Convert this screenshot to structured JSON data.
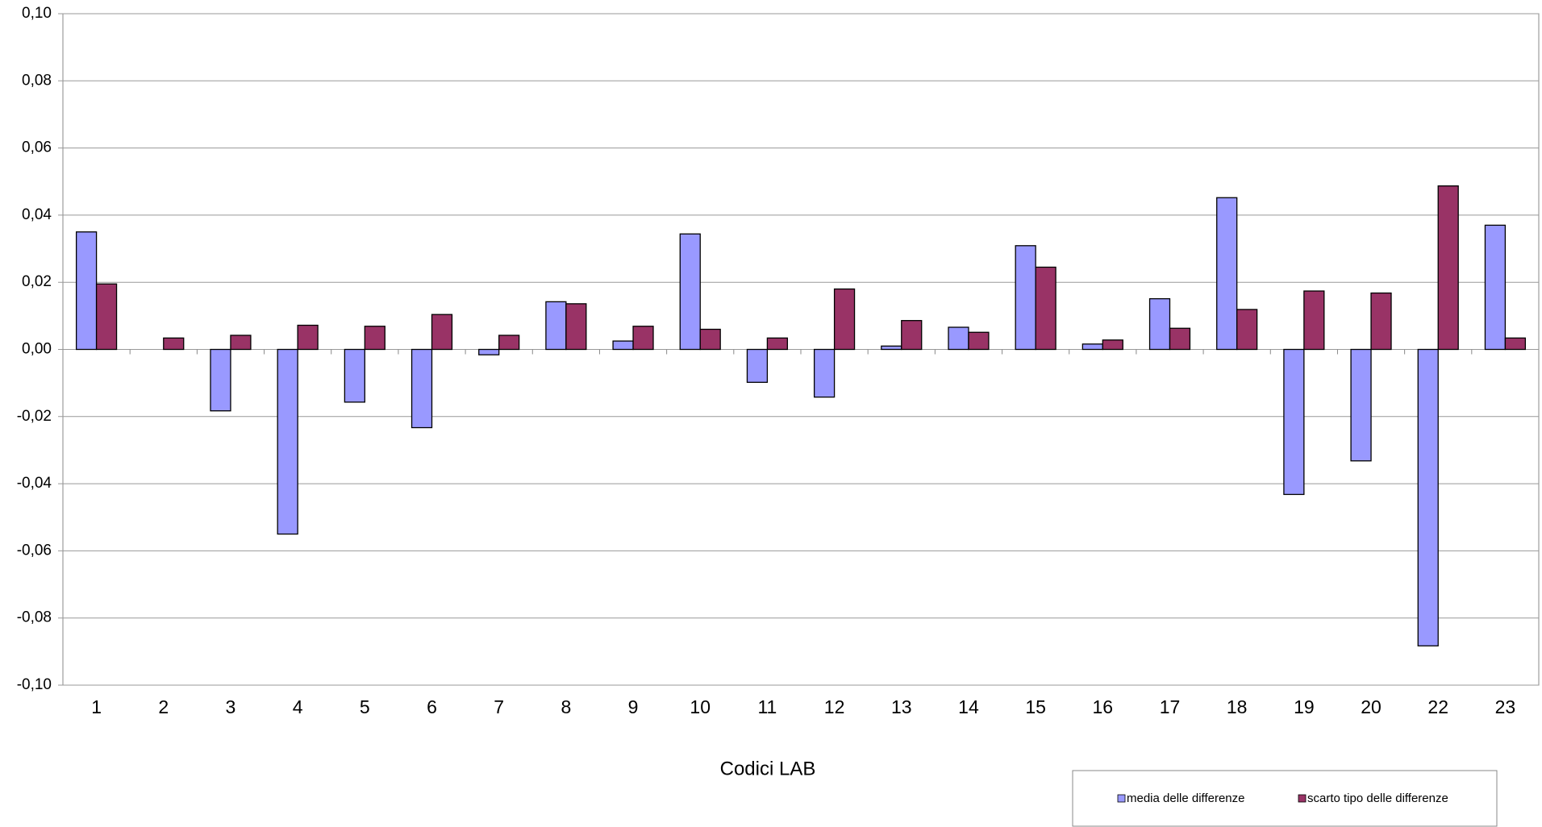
{
  "chart_data": {
    "type": "bar",
    "x_label": "Codici LAB",
    "categories": [
      "1",
      "2",
      "3",
      "4",
      "5",
      "6",
      "7",
      "8",
      "9",
      "10",
      "11",
      "12",
      "13",
      "14",
      "15",
      "16",
      "17",
      "18",
      "19",
      "20",
      "22",
      "23"
    ],
    "series": [
      {
        "name": "media delle differenze",
        "color": "#9999ff",
        "values": [
          0.035,
          null,
          -0.0183,
          -0.055,
          -0.0157,
          -0.0233,
          -0.0016,
          0.0142,
          0.0025,
          0.0344,
          -0.0098,
          -0.0142,
          0.001,
          0.0066,
          0.0309,
          0.0016,
          0.0151,
          0.0452,
          -0.0432,
          -0.0332,
          -0.0883,
          0.037
        ]
      },
      {
        "name": "scarto tipo delle differenze",
        "color": "#993366",
        "values": [
          0.0195,
          0.0034,
          0.0042,
          0.0072,
          0.0069,
          0.0104,
          0.0042,
          0.0136,
          0.0069,
          0.006,
          0.0034,
          0.018,
          0.0086,
          0.0051,
          0.0245,
          0.0028,
          0.0063,
          0.0119,
          0.0174,
          0.0168,
          0.0487,
          0.0034
        ]
      }
    ],
    "ylim": [
      -0.1,
      0.1
    ],
    "yticks": [
      {
        "value": -0.1,
        "label": "-0,10"
      },
      {
        "value": -0.08,
        "label": "-0,08"
      },
      {
        "value": -0.06,
        "label": "-0,06"
      },
      {
        "value": -0.04,
        "label": "-0,04"
      },
      {
        "value": -0.02,
        "label": "-0,02"
      },
      {
        "value": 0,
        "label": "0,00"
      },
      {
        "value": 0.02,
        "label": "0,02"
      },
      {
        "value": 0.04,
        "label": "0,04"
      },
      {
        "value": 0.06,
        "label": "0,06"
      },
      {
        "value": 0.08,
        "label": "0,08"
      },
      {
        "value": 0.1,
        "label": "0,10"
      }
    ],
    "grid": true
  }
}
